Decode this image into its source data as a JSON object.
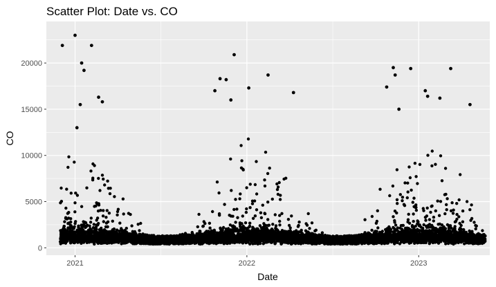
{
  "chart_data": {
    "type": "scatter",
    "title": "Scatter Plot: Date vs. CO",
    "xlabel": "Date",
    "ylabel": "CO",
    "xlim": [
      "2020-11-01",
      "2023-06-01"
    ],
    "ylim": [
      -800,
      24500
    ],
    "x_ticks": [
      {
        "label": "2021",
        "value": "2021-01-01"
      },
      {
        "label": "2022",
        "value": "2022-01-01"
      },
      {
        "label": "2023",
        "value": "2023-01-01"
      }
    ],
    "y_ticks": [
      {
        "label": "0",
        "value": 0
      },
      {
        "label": "5000",
        "value": 5000
      },
      {
        "label": "10000",
        "value": 10000
      },
      {
        "label": "15000",
        "value": 15000
      },
      {
        "label": "20000",
        "value": 20000
      }
    ],
    "grid": true,
    "point_color": "#000000",
    "panel_background": "#ebebeb",
    "grid_color": "#ffffff",
    "notable_points": [
      {
        "x": "2020-12-05",
        "y": 21900
      },
      {
        "x": "2021-01-01",
        "y": 23000
      },
      {
        "x": "2021-01-15",
        "y": 20000
      },
      {
        "x": "2021-01-20",
        "y": 19200
      },
      {
        "x": "2021-02-05",
        "y": 21900
      },
      {
        "x": "2021-02-20",
        "y": 16300
      },
      {
        "x": "2021-01-12",
        "y": 15500
      },
      {
        "x": "2021-02-28",
        "y": 15800
      },
      {
        "x": "2021-01-05",
        "y": 13000
      },
      {
        "x": "2021-12-05",
        "y": 20900
      },
      {
        "x": "2021-11-05",
        "y": 18300
      },
      {
        "x": "2021-11-18",
        "y": 18200
      },
      {
        "x": "2022-02-15",
        "y": 18700
      },
      {
        "x": "2022-01-05",
        "y": 17300
      },
      {
        "x": "2021-10-25",
        "y": 17000
      },
      {
        "x": "2022-04-10",
        "y": 16800
      },
      {
        "x": "2021-11-28",
        "y": 16000
      },
      {
        "x": "2022-11-08",
        "y": 19500
      },
      {
        "x": "2022-12-15",
        "y": 19400
      },
      {
        "x": "2022-11-12",
        "y": 18700
      },
      {
        "x": "2023-03-10",
        "y": 19400
      },
      {
        "x": "2022-10-25",
        "y": 17400
      },
      {
        "x": "2023-01-15",
        "y": 17000
      },
      {
        "x": "2023-01-20",
        "y": 16400
      },
      {
        "x": "2023-04-20",
        "y": 15500
      },
      {
        "x": "2022-11-20",
        "y": 15000
      },
      {
        "x": "2023-02-15",
        "y": 16200
      }
    ]
  }
}
